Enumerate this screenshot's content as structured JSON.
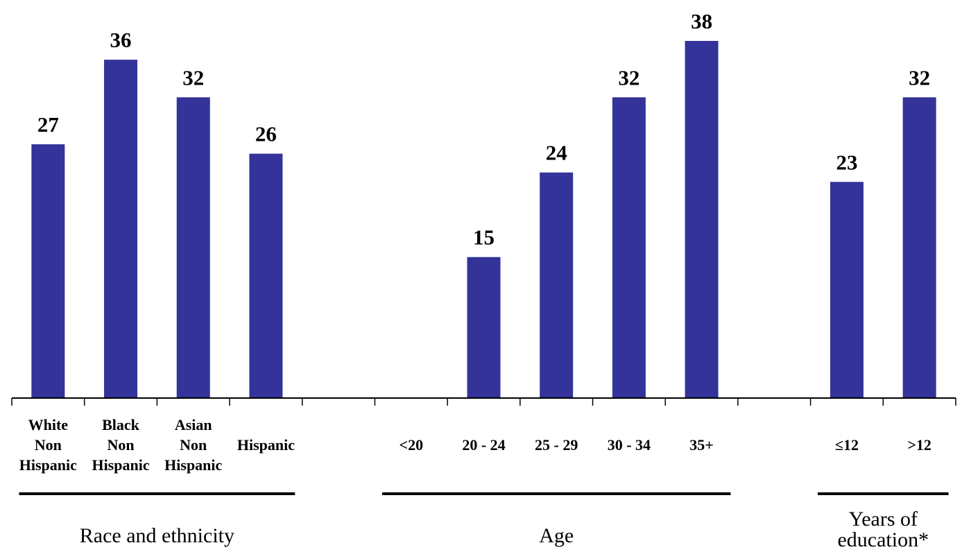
{
  "chart_data": {
    "type": "bar",
    "title": "",
    "xlabel": "",
    "ylabel": "",
    "ylim": [
      0,
      38
    ],
    "grid": false,
    "legend": "none",
    "bar_color": "#333399",
    "categories": [
      [
        "White",
        "Non",
        "Hispanic"
      ],
      [
        "Black",
        "Non",
        "Hispanic"
      ],
      [
        "Asian",
        "Non",
        "Hispanic"
      ],
      [
        "Hispanic"
      ],
      [
        ""
      ],
      [
        "<20"
      ],
      [
        "20 - 24"
      ],
      [
        "25 - 29"
      ],
      [
        "30 - 34"
      ],
      [
        "35+"
      ],
      [
        ""
      ],
      [
        "≤12"
      ],
      [
        ">12"
      ]
    ],
    "values": [
      27,
      36,
      32,
      26,
      null,
      null,
      15,
      24,
      32,
      38,
      null,
      23,
      32
    ],
    "groups": [
      {
        "label": [
          "Race and ethnicity"
        ],
        "from": 0,
        "to": 3
      },
      {
        "label": [
          "Age"
        ],
        "from": 5,
        "to": 9
      },
      {
        "label": [
          "Years of",
          "education*"
        ],
        "from": 11,
        "to": 12
      }
    ]
  }
}
